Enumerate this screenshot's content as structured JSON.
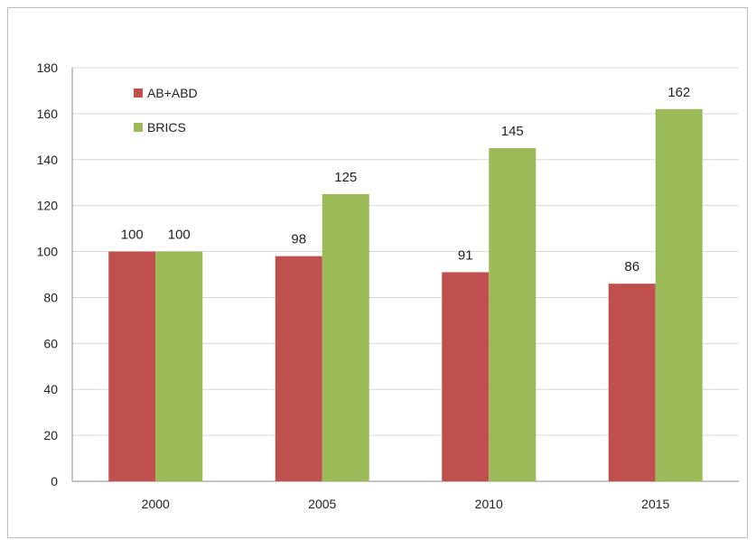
{
  "chart_data": {
    "type": "bar",
    "categories": [
      "2000",
      "2005",
      "2010",
      "2015"
    ],
    "series": [
      {
        "name": "AB+ABD",
        "values": [
          100,
          98,
          91,
          86
        ],
        "color": "#c0504d"
      },
      {
        "name": "BRICS",
        "values": [
          100,
          125,
          145,
          162
        ],
        "color": "#9bbb59"
      }
    ],
    "ylim": [
      0,
      180
    ],
    "yticks": [
      0,
      20,
      40,
      60,
      80,
      100,
      120,
      140,
      160,
      180
    ],
    "grid": true,
    "legend_position": "top-left",
    "colors": {
      "grid": "#d9d9d9",
      "axis": "#8c8c8c"
    }
  }
}
